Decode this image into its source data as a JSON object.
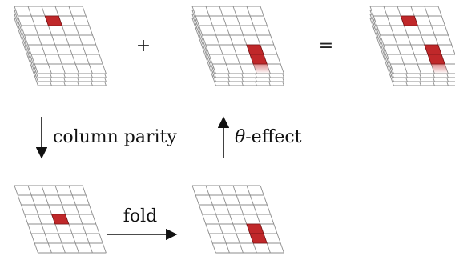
{
  "labels": {
    "plus": "+",
    "equals": "=",
    "column_parity": "column parity",
    "theta_effect_symbol": "θ",
    "theta_effect_text": "-effect",
    "fold": "fold"
  },
  "colors": {
    "grid_stroke": "#8c8c8c",
    "highlight": "#c0282a",
    "highlight_stroke": "#7a1214",
    "text": "#111111"
  },
  "lattices": [
    {
      "name": "state-a-stack",
      "layers": 4,
      "cells": [
        [
          1,
          2
        ]
      ],
      "fade_cells": []
    },
    {
      "name": "theta-effect-stack",
      "layers": 4,
      "cells": [
        [
          4,
          3
        ],
        [
          5,
          3
        ]
      ],
      "fade_cells": [
        [
          6,
          3
        ]
      ]
    },
    {
      "name": "result-stack",
      "layers": 4,
      "cells": [
        [
          1,
          2
        ],
        [
          4,
          3
        ],
        [
          5,
          3
        ]
      ],
      "fade_cells": [
        [
          6,
          3
        ]
      ]
    },
    {
      "name": "column-parity-plane",
      "layers": 1,
      "cells": [
        [
          3,
          2
        ]
      ],
      "fade_cells": []
    },
    {
      "name": "folded-plane",
      "layers": 1,
      "cells": [
        [
          4,
          3
        ],
        [
          5,
          3
        ]
      ],
      "fade_cells": []
    }
  ]
}
